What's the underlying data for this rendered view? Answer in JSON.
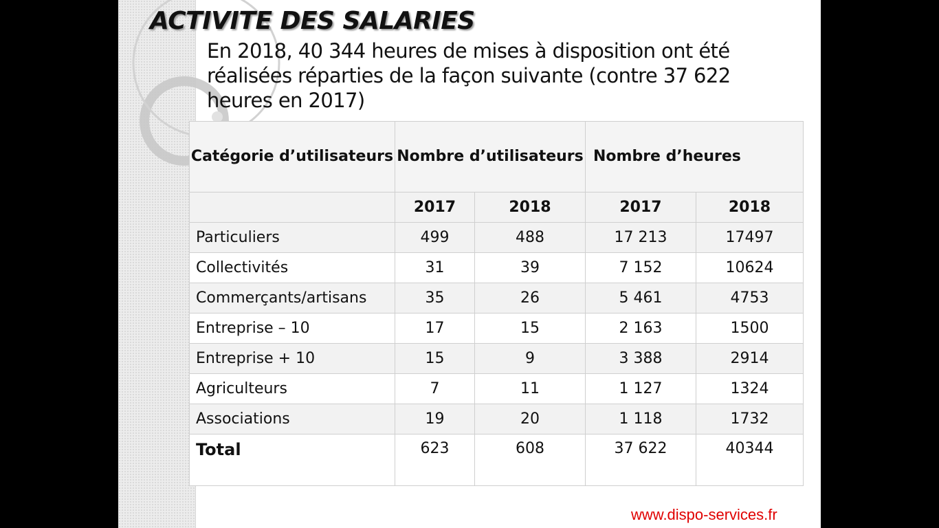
{
  "slide": {
    "title": "ACTIVITE DES SALARIES",
    "intro": " En 2018,  40 344 heures de mises à disposition ont été réalisées réparties de la façon suivante (contre 37 622 heures en 2017)",
    "footer_url": "www.dispo-services.fr"
  },
  "table": {
    "headers": {
      "category": "Catégorie d’utilisateurs",
      "users": "Nombre d’utilisateurs",
      "hours": "Nombre d’heures"
    },
    "years": [
      "2017",
      "2018",
      "2017",
      "2018"
    ],
    "rows": [
      {
        "category": "Particuliers",
        "users_2017": "499",
        "users_2018": "488",
        "hours_2017": "17 213",
        "hours_2018": "17497"
      },
      {
        "category": "Collectivités",
        "users_2017": "31",
        "users_2018": "39",
        "hours_2017": "7 152",
        "hours_2018": "10624"
      },
      {
        "category": "Commerçants/artisans",
        "users_2017": "35",
        "users_2018": "26",
        "hours_2017": "5 461",
        "hours_2018": "4753"
      },
      {
        "category": "Entreprise – 10",
        "users_2017": "17",
        "users_2018": "15",
        "hours_2017": "2 163",
        "hours_2018": "1500"
      },
      {
        "category": "Entreprise + 10",
        "users_2017": "15",
        "users_2018": "9",
        "hours_2017": "3 388",
        "hours_2018": "2914"
      },
      {
        "category": "Agriculteurs",
        "users_2017": "7",
        "users_2018": "11",
        "hours_2017": "1 127",
        "hours_2018": "1324"
      },
      {
        "category": "Associations",
        "users_2017": "19",
        "users_2018": "20",
        "hours_2017": "1 118",
        "hours_2018": "1732"
      }
    ],
    "total": {
      "category": "Total",
      "users_2017": "623",
      "users_2018": "608",
      "hours_2017": "37 622",
      "hours_2018": "40344"
    }
  }
}
